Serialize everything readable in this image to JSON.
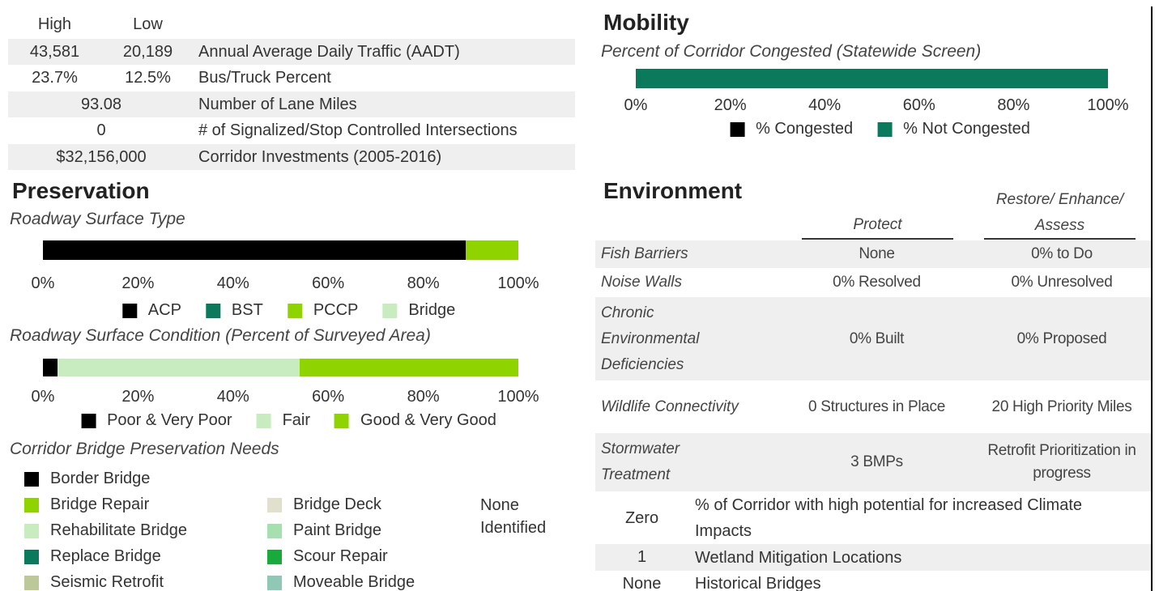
{
  "traffic": {
    "headers": [
      "High",
      "Low"
    ],
    "rows": [
      [
        "43,581",
        "20,189",
        "Annual Average Daily Traffic (AADT)"
      ],
      [
        "23.7%",
        "12.5%",
        "Bus/Truck Percent"
      ],
      [
        "93.08",
        "Number of Lane Miles"
      ],
      [
        "0",
        "# of Signalized/Stop Controlled Intersections"
      ],
      [
        "$32,156,000",
        "Corridor Investments (2005-2016)"
      ]
    ]
  },
  "preservation": {
    "title": "Preservation",
    "bridge_title": "Corridor Bridge Preservation Needs",
    "bridge_legend": [
      [
        {
          "name": "Border Bridge",
          "color": "#000000"
        },
        {
          "name": "Bridge Repair",
          "color": "#8fd400"
        },
        {
          "name": "Rehabilitate Bridge",
          "color": "#c8ecc0"
        },
        {
          "name": "Replace Bridge",
          "color": "#0b7a5c"
        },
        {
          "name": "Seismic Retrofit",
          "color": "#bcc89a"
        }
      ],
      [
        {
          "name": "Bridge Deck",
          "color": "#e0e0cc"
        },
        {
          "name": "Paint Bridge",
          "color": "#a6e0b0"
        },
        {
          "name": "Scour Repair",
          "color": "#1aaa3c"
        },
        {
          "name": "Moveable Bridge",
          "color": "#8fc9b5"
        }
      ]
    ],
    "bridge_note": "None Identified"
  },
  "mobility": {
    "title": "Mobility"
  },
  "environment": {
    "title": "Environment",
    "columns": [
      "Protect",
      "Restore/ Enhance/ Assess"
    ],
    "rows": [
      [
        "Fish Barriers",
        "None",
        "0% to Do"
      ],
      [
        "Noise Walls",
        "0% Resolved",
        "0% Unresolved"
      ],
      [
        "Chronic Environmental Deficiencies",
        "0% Built",
        "0% Proposed"
      ],
      [
        "Wildlife Connectivity",
        "0 Structures in Place",
        "20 High Priority Miles"
      ],
      [
        "Stormwater Treatment",
        "3 BMPs",
        "Retrofit Prioritization in progress"
      ]
    ],
    "impacts": [
      [
        "Zero",
        "% of Corridor with high potential for increased Climate Impacts"
      ],
      [
        "1",
        "Wetland Mitigation Locations"
      ],
      [
        "None",
        "Historical Bridges"
      ]
    ]
  },
  "chart_data": [
    {
      "type": "stacked_bar",
      "title": "Percent of Corridor Congested (Statewide Screen)",
      "series": [
        {
          "name": "% Congested",
          "color": "#000000",
          "values": [
            0
          ]
        },
        {
          "name": "% Not Congested",
          "color": "#0b7a5c",
          "values": [
            100
          ]
        }
      ],
      "xlim": [
        0,
        100
      ],
      "xticks": [
        {
          "value": 0,
          "label": "0%"
        },
        {
          "value": 20,
          "label": "20%"
        },
        {
          "value": 40,
          "label": "40%"
        },
        {
          "value": 60,
          "label": "60%"
        },
        {
          "value": 80,
          "label": "80%"
        },
        {
          "value": 100,
          "label": "100%"
        }
      ]
    },
    {
      "type": "stacked_bar",
      "title": "Roadway Surface Type",
      "series": [
        {
          "name": "ACP",
          "color": "#000000",
          "values": [
            89
          ]
        },
        {
          "name": "BST",
          "color": "#0b7a5c",
          "values": [
            0
          ]
        },
        {
          "name": "PCCP",
          "color": "#8fd400",
          "values": [
            11
          ]
        },
        {
          "name": "Bridge",
          "color": "#c8ecc0",
          "values": [
            0
          ]
        }
      ],
      "xlim": [
        0,
        100
      ],
      "xticks": [
        {
          "value": 0,
          "label": "0%"
        },
        {
          "value": 20,
          "label": "20%"
        },
        {
          "value": 40,
          "label": "40%"
        },
        {
          "value": 60,
          "label": "60%"
        },
        {
          "value": 80,
          "label": "80%"
        },
        {
          "value": 100,
          "label": "100%"
        }
      ]
    },
    {
      "type": "stacked_bar",
      "title": "Roadway Surface Condition (Percent of Surveyed Area)",
      "series": [
        {
          "name": "Poor & Very Poor",
          "color": "#000000",
          "values": [
            3
          ]
        },
        {
          "name": "Fair",
          "color": "#c8ecc0",
          "values": [
            51
          ]
        },
        {
          "name": "Good & Very Good",
          "color": "#8fd400",
          "values": [
            46
          ]
        }
      ],
      "xlim": [
        0,
        100
      ],
      "xticks": [
        {
          "value": 0,
          "label": "0%"
        },
        {
          "value": 20,
          "label": "20%"
        },
        {
          "value": 40,
          "label": "40%"
        },
        {
          "value": 60,
          "label": "60%"
        },
        {
          "value": 80,
          "label": "80%"
        },
        {
          "value": 100,
          "label": "100%"
        }
      ]
    }
  ]
}
